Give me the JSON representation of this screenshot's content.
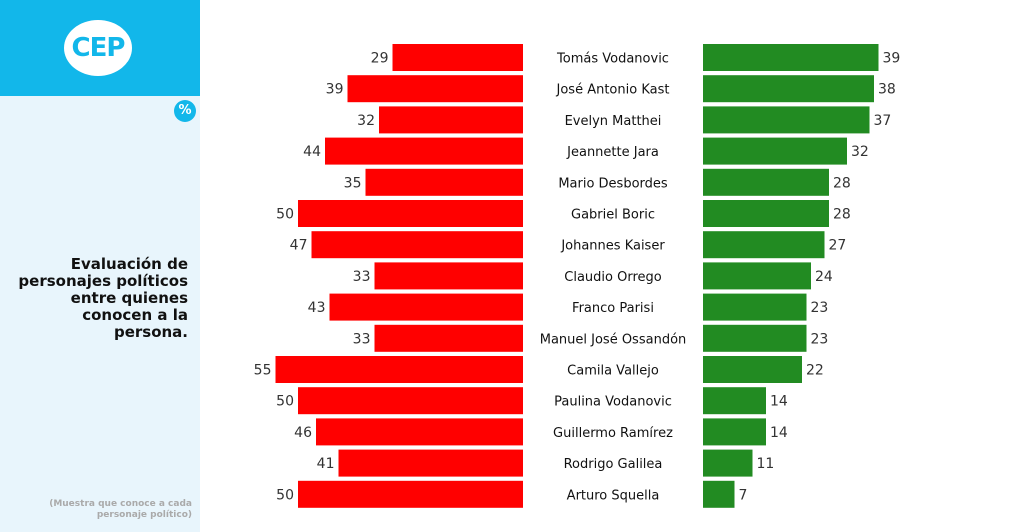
{
  "sidebar": {
    "logo": "CEP",
    "badge": "%",
    "title": "Evaluación de personajes políticos entre quienes conocen a la persona.",
    "note": "(Muestra que conoce a cada personaje político)"
  },
  "colors": {
    "negative": "#ff0000",
    "positive": "#228b22",
    "accent": "#12b7ea"
  },
  "chart_data": {
    "type": "bar",
    "orientation": "horizontal-diverging",
    "categories": [
      "Tomás Vodanovic",
      "José Antonio Kast",
      "Evelyn Matthei",
      "Jeannette Jara",
      "Mario Desbordes",
      "Gabriel Boric",
      "Johannes Kaiser",
      "Claudio Orrego",
      "Franco Parisi",
      "Manuel José Ossandón",
      "Camila Vallejo",
      "Paulina Vodanovic",
      "Guillermo Ramírez",
      "Rodrigo Galilea",
      "Arturo Squella"
    ],
    "series": [
      {
        "color": "#ff0000",
        "values": [
          29,
          39,
          32,
          44,
          35,
          50,
          47,
          33,
          43,
          33,
          55,
          50,
          46,
          41,
          50
        ]
      },
      {
        "color": "#228b22",
        "values": [
          39,
          38,
          37,
          32,
          28,
          28,
          27,
          24,
          23,
          23,
          22,
          14,
          14,
          11,
          7
        ]
      }
    ]
  }
}
